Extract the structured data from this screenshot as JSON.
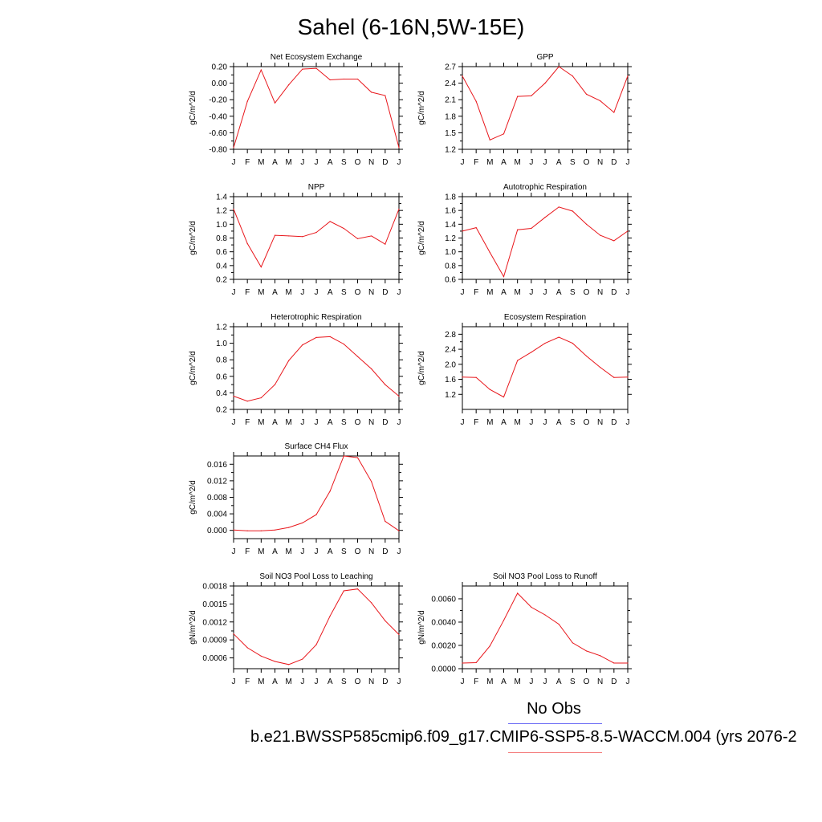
{
  "title": "Sahel (6-16N,5W-15E)",
  "legend": {
    "label": "No Obs",
    "line_colors": [
      "#6b6bf5",
      "#f58080"
    ]
  },
  "case_name": "b.e21.BWSSP585cmip6.f09_g17.CMIP6-SSP5-8.5-WACCM.004 (yrs 2076-2",
  "line_color": "#e8161b",
  "chart_data": [
    {
      "type": "line",
      "title": "Net Ecosystem Exchange",
      "ylabel": "gC/m^2/d",
      "categories": [
        "J",
        "F",
        "M",
        "A",
        "M",
        "J",
        "J",
        "A",
        "S",
        "O",
        "N",
        "D",
        "J"
      ],
      "ylim": [
        -0.8,
        0.2
      ],
      "yticks": [
        -0.8,
        -0.6,
        -0.4,
        -0.2,
        0.0,
        0.2
      ],
      "ytick_labels": [
        "-0.80",
        "-0.60",
        "-0.40",
        "-0.20",
        "0.00",
        "0.20"
      ],
      "values": [
        -0.78,
        -0.22,
        0.16,
        -0.24,
        -0.02,
        0.17,
        0.18,
        0.04,
        0.05,
        0.05,
        -0.11,
        -0.15,
        -0.78
      ]
    },
    {
      "type": "line",
      "title": "GPP",
      "ylabel": "gC/m^2/d",
      "categories": [
        "J",
        "F",
        "M",
        "A",
        "M",
        "J",
        "J",
        "A",
        "S",
        "O",
        "N",
        "D",
        "J"
      ],
      "ylim": [
        1.2,
        2.7
      ],
      "yticks": [
        1.2,
        1.5,
        1.8,
        2.1,
        2.4,
        2.7
      ],
      "ytick_labels": [
        "1.2",
        "1.5",
        "1.8",
        "2.1",
        "2.4",
        "2.7"
      ],
      "values": [
        2.53,
        2.07,
        1.37,
        1.48,
        2.16,
        2.17,
        2.4,
        2.7,
        2.53,
        2.2,
        2.08,
        1.87,
        2.53
      ]
    },
    {
      "type": "line",
      "title": "NPP",
      "ylabel": "gC/m^2/d",
      "categories": [
        "J",
        "F",
        "M",
        "A",
        "M",
        "J",
        "J",
        "A",
        "S",
        "O",
        "N",
        "D",
        "J"
      ],
      "ylim": [
        0.2,
        1.4
      ],
      "yticks": [
        0.2,
        0.4,
        0.6,
        0.8,
        1.0,
        1.2,
        1.4
      ],
      "ytick_labels": [
        "0.2",
        "0.4",
        "0.6",
        "0.8",
        "1.0",
        "1.2",
        "1.4"
      ],
      "values": [
        1.22,
        0.72,
        0.38,
        0.84,
        0.83,
        0.82,
        0.88,
        1.04,
        0.94,
        0.79,
        0.83,
        0.71,
        1.22
      ]
    },
    {
      "type": "line",
      "title": "Autotrophic Respiration",
      "ylabel": "gC/m^2/d",
      "categories": [
        "J",
        "F",
        "M",
        "A",
        "M",
        "J",
        "J",
        "A",
        "S",
        "O",
        "N",
        "D",
        "J"
      ],
      "ylim": [
        0.6,
        1.8
      ],
      "yticks": [
        0.6,
        0.8,
        1.0,
        1.2,
        1.4,
        1.6,
        1.8
      ],
      "ytick_labels": [
        "0.6",
        "0.8",
        "1.0",
        "1.2",
        "1.4",
        "1.6",
        "1.8"
      ],
      "values": [
        1.3,
        1.35,
        0.99,
        0.64,
        1.32,
        1.34,
        1.5,
        1.65,
        1.59,
        1.4,
        1.24,
        1.16,
        1.3
      ]
    },
    {
      "type": "line",
      "title": "Heterotrophic Respiration",
      "ylabel": "gC/m^2/d",
      "categories": [
        "J",
        "F",
        "M",
        "A",
        "M",
        "J",
        "J",
        "A",
        "S",
        "O",
        "N",
        "D",
        "J"
      ],
      "ylim": [
        0.2,
        1.2
      ],
      "yticks": [
        0.2,
        0.4,
        0.6,
        0.8,
        1.0,
        1.2
      ],
      "ytick_labels": [
        "0.2",
        "0.4",
        "0.6",
        "0.8",
        "1.0",
        "1.2"
      ],
      "values": [
        0.36,
        0.3,
        0.34,
        0.5,
        0.79,
        0.98,
        1.07,
        1.08,
        0.99,
        0.84,
        0.69,
        0.5,
        0.36
      ]
    },
    {
      "type": "line",
      "title": "Ecosystem Respiration",
      "ylabel": "gC/m^2/d",
      "categories": [
        "J",
        "F",
        "M",
        "A",
        "M",
        "J",
        "J",
        "A",
        "S",
        "O",
        "N",
        "D",
        "J"
      ],
      "ylim": [
        0.8,
        3.0
      ],
      "yticks": [
        1.2,
        1.6,
        2.0,
        2.4,
        2.8
      ],
      "ytick_labels": [
        "1.2",
        "1.6",
        "2.0",
        "2.4",
        "2.8"
      ],
      "values": [
        1.66,
        1.65,
        1.33,
        1.13,
        2.1,
        2.32,
        2.56,
        2.72,
        2.56,
        2.22,
        1.92,
        1.65,
        1.66
      ]
    },
    {
      "type": "line",
      "title": "Surface CH4 Flux",
      "ylabel": "gC/m^2/d",
      "categories": [
        "J",
        "F",
        "M",
        "A",
        "M",
        "J",
        "J",
        "A",
        "S",
        "O",
        "N",
        "D",
        "J"
      ],
      "ylim": [
        -0.002,
        0.018
      ],
      "yticks": [
        0.0,
        0.004,
        0.008,
        0.012,
        0.016
      ],
      "ytick_labels": [
        "0.000",
        "0.004",
        "0.008",
        "0.012",
        "0.016"
      ],
      "values": [
        0.0001,
        -0.0001,
        -0.0001,
        0.0001,
        0.0007,
        0.0018,
        0.0038,
        0.0095,
        0.018,
        0.0176,
        0.0118,
        0.0022,
        -0.0001
      ]
    },
    {
      "type": "line",
      "title": "Soil NO3 Pool Loss to Leaching",
      "ylabel": "gN/m^2/d",
      "categories": [
        "J",
        "F",
        "M",
        "A",
        "M",
        "J",
        "J",
        "A",
        "S",
        "O",
        "N",
        "D",
        "J"
      ],
      "ylim": [
        0.00042,
        0.0018
      ],
      "yticks": [
        0.0006,
        0.0009,
        0.0012,
        0.0015,
        0.0018
      ],
      "ytick_labels": [
        "0.0006",
        "0.0009",
        "0.0012",
        "0.0015",
        "0.0018"
      ],
      "values": [
        0.001,
        0.00077,
        0.00063,
        0.00054,
        0.00049,
        0.00058,
        0.00082,
        0.0013,
        0.00172,
        0.00175,
        0.00152,
        0.00122,
        0.00099
      ]
    },
    {
      "type": "line",
      "title": "Soil NO3 Pool Loss to Runoff",
      "ylabel": "gN/m^2/d",
      "categories": [
        "J",
        "F",
        "M",
        "A",
        "M",
        "J",
        "J",
        "A",
        "S",
        "O",
        "N",
        "D",
        "J"
      ],
      "ylim": [
        0.0,
        0.0071
      ],
      "yticks": [
        0.0,
        0.002,
        0.004,
        0.006
      ],
      "ytick_labels": [
        "0.0000",
        "0.0020",
        "0.0040",
        "0.0060"
      ],
      "values": [
        0.00048,
        0.00052,
        0.00195,
        0.00415,
        0.00648,
        0.00528,
        0.00462,
        0.00382,
        0.00222,
        0.00152,
        0.00112,
        0.00048,
        0.00048
      ]
    }
  ]
}
